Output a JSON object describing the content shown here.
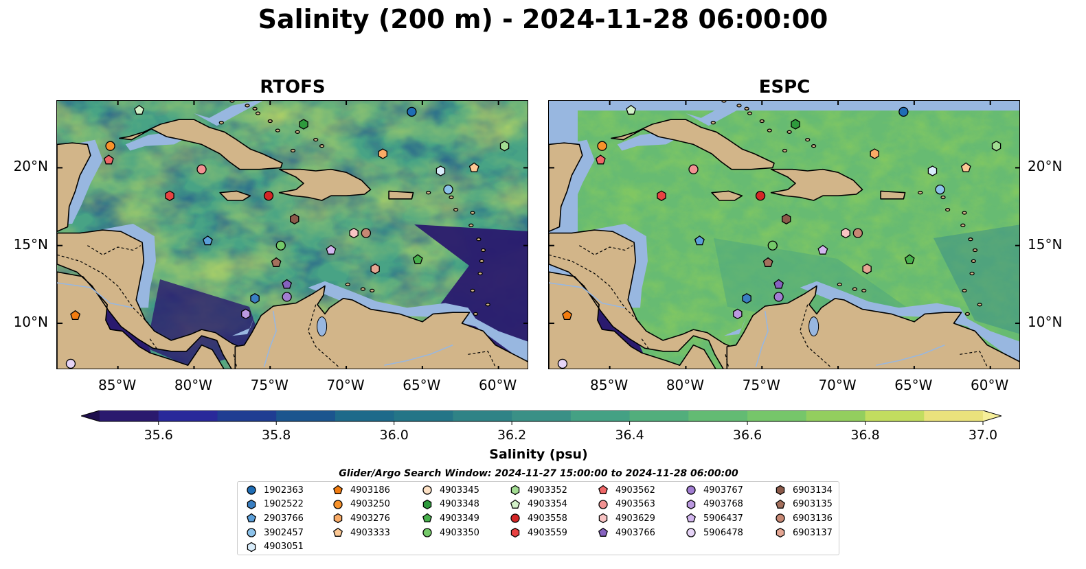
{
  "title": "Salinity (200 m) - 2024-11-28 06:00:00",
  "panels": [
    {
      "id": "rtofs",
      "label": "RTOFS"
    },
    {
      "id": "espc",
      "label": "ESPC"
    }
  ],
  "axes": {
    "lon_ticks": [
      "85°W",
      "80°W",
      "75°W",
      "70°W",
      "65°W",
      "60°W"
    ],
    "lon_values": [
      -85,
      -80,
      -75,
      -70,
      -65,
      -60
    ],
    "lat_ticks": [
      "10°N",
      "15°N",
      "20°N"
    ],
    "lat_values": [
      10,
      15,
      20
    ],
    "lon_range": [
      -89,
      -58
    ],
    "lat_range": [
      7,
      24.3
    ]
  },
  "colorbar": {
    "label": "Salinity (psu)",
    "ticks": [
      "35.6",
      "35.8",
      "36.0",
      "36.2",
      "36.4",
      "36.6",
      "36.8",
      "37.0"
    ],
    "tick_values": [
      35.6,
      35.8,
      36.0,
      36.2,
      36.4,
      36.6,
      36.8,
      37.0
    ],
    "range": [
      35.5,
      37.0
    ],
    "extend": "both",
    "colors": [
      "#2a1a6e",
      "#29299a",
      "#1f3d92",
      "#1b558e",
      "#1e6a8a",
      "#247587",
      "#2f8386",
      "#3a9086",
      "#44a184",
      "#52ae7c",
      "#63bb73",
      "#76c66a",
      "#93ce5e",
      "#c2dd5f",
      "#eae27c"
    ]
  },
  "search_window": "Glider/Argo Search Window: 2024-11-27 15:00:00 to 2024-11-28 06:00:00",
  "legend": [
    {
      "id": "1902363",
      "marker": "circle",
      "color": "#1f6db5"
    },
    {
      "id": "1902522",
      "marker": "hexagon",
      "color": "#3a7fc2"
    },
    {
      "id": "2903766",
      "marker": "pentagon",
      "color": "#5b9fd9"
    },
    {
      "id": "3902457",
      "marker": "circle",
      "color": "#8cc2ea"
    },
    {
      "id": "4903051",
      "marker": "hexagon",
      "color": "#d8ecfa"
    },
    {
      "id": "4903186",
      "marker": "pentagon",
      "color": "#f27c10"
    },
    {
      "id": "4903250",
      "marker": "circle",
      "color": "#f7922b"
    },
    {
      "id": "4903276",
      "marker": "hexagon",
      "color": "#f9ab66"
    },
    {
      "id": "4903333",
      "marker": "pentagon",
      "color": "#fcc894"
    },
    {
      "id": "4903345",
      "marker": "circle",
      "color": "#fde1c5"
    },
    {
      "id": "4903348",
      "marker": "hexagon",
      "color": "#2e9a3c"
    },
    {
      "id": "4903349",
      "marker": "pentagon",
      "color": "#48b04c"
    },
    {
      "id": "4903350",
      "marker": "circle",
      "color": "#74c969"
    },
    {
      "id": "4903352",
      "marker": "hexagon",
      "color": "#a2dc92"
    },
    {
      "id": "4903354",
      "marker": "pentagon",
      "color": "#d3f2c9"
    },
    {
      "id": "4903558",
      "marker": "circle",
      "color": "#d42626"
    },
    {
      "id": "4903559",
      "marker": "hexagon",
      "color": "#e84242"
    },
    {
      "id": "4903562",
      "marker": "pentagon",
      "color": "#ef6767"
    },
    {
      "id": "4903563",
      "marker": "circle",
      "color": "#f29292"
    },
    {
      "id": "4903629",
      "marker": "hexagon",
      "color": "#f9c4c4"
    },
    {
      "id": "4903766",
      "marker": "pentagon",
      "color": "#8662bf"
    },
    {
      "id": "4903767",
      "marker": "circle",
      "color": "#a27ed2"
    },
    {
      "id": "4903768",
      "marker": "hexagon",
      "color": "#bb99e0"
    },
    {
      "id": "5906437",
      "marker": "pentagon",
      "color": "#d2b6ee"
    },
    {
      "id": "5906478",
      "marker": "circle",
      "color": "#e6d4f7"
    },
    {
      "id": "6903134",
      "marker": "hexagon",
      "color": "#8c5a4a"
    },
    {
      "id": "6903135",
      "marker": "pentagon",
      "color": "#a4705d"
    },
    {
      "id": "6903136",
      "marker": "circle",
      "color": "#c78874"
    },
    {
      "id": "6903137",
      "marker": "hexagon",
      "color": "#e5a693"
    }
  ],
  "platforms": [
    {
      "id": "1902363",
      "lon": -65.7,
      "lat": 23.6
    },
    {
      "id": "4903354",
      "lon": -83.6,
      "lat": 23.7
    },
    {
      "id": "4903348",
      "lon": -72.8,
      "lat": 22.8
    },
    {
      "id": "4903250",
      "lon": -85.5,
      "lat": 21.4
    },
    {
      "id": "4903562",
      "lon": -85.6,
      "lat": 20.5
    },
    {
      "id": "4903352",
      "lon": -59.6,
      "lat": 21.4
    },
    {
      "id": "4903276",
      "lon": -67.6,
      "lat": 20.9
    },
    {
      "id": "4903333",
      "lon": -61.6,
      "lat": 20.0
    },
    {
      "id": "4903051",
      "lon": -63.8,
      "lat": 19.8
    },
    {
      "id": "3902457",
      "lon": -63.3,
      "lat": 18.6
    },
    {
      "id": "4903563",
      "lon": -79.5,
      "lat": 19.9
    },
    {
      "id": "4903559",
      "lon": -81.6,
      "lat": 18.2
    },
    {
      "id": "4903558",
      "lon": -75.1,
      "lat": 18.2
    },
    {
      "id": "6903134",
      "lon": -73.4,
      "lat": 16.7
    },
    {
      "id": "4903629",
      "lon": -69.5,
      "lat": 15.8
    },
    {
      "id": "6903136",
      "lon": -68.7,
      "lat": 15.8
    },
    {
      "id": "2903766",
      "lon": -79.1,
      "lat": 15.3
    },
    {
      "id": "4903350",
      "lon": -74.3,
      "lat": 15.0
    },
    {
      "id": "5906437",
      "lon": -71.0,
      "lat": 14.7
    },
    {
      "id": "4903349",
      "lon": -65.3,
      "lat": 14.1
    },
    {
      "id": "6903135",
      "lon": -74.6,
      "lat": 13.9
    },
    {
      "id": "6903137",
      "lon": -68.1,
      "lat": 13.5
    },
    {
      "id": "4903766",
      "lon": -73.9,
      "lat": 12.5
    },
    {
      "id": "4903767",
      "lon": -73.9,
      "lat": 11.7
    },
    {
      "id": "1902522",
      "lon": -76.0,
      "lat": 11.6
    },
    {
      "id": "4903768",
      "lon": -76.6,
      "lat": 10.6
    },
    {
      "id": "4903186",
      "lon": -87.8,
      "lat": 10.5
    },
    {
      "id": "5906478",
      "lon": -88.1,
      "lat": 7.4
    }
  ]
}
